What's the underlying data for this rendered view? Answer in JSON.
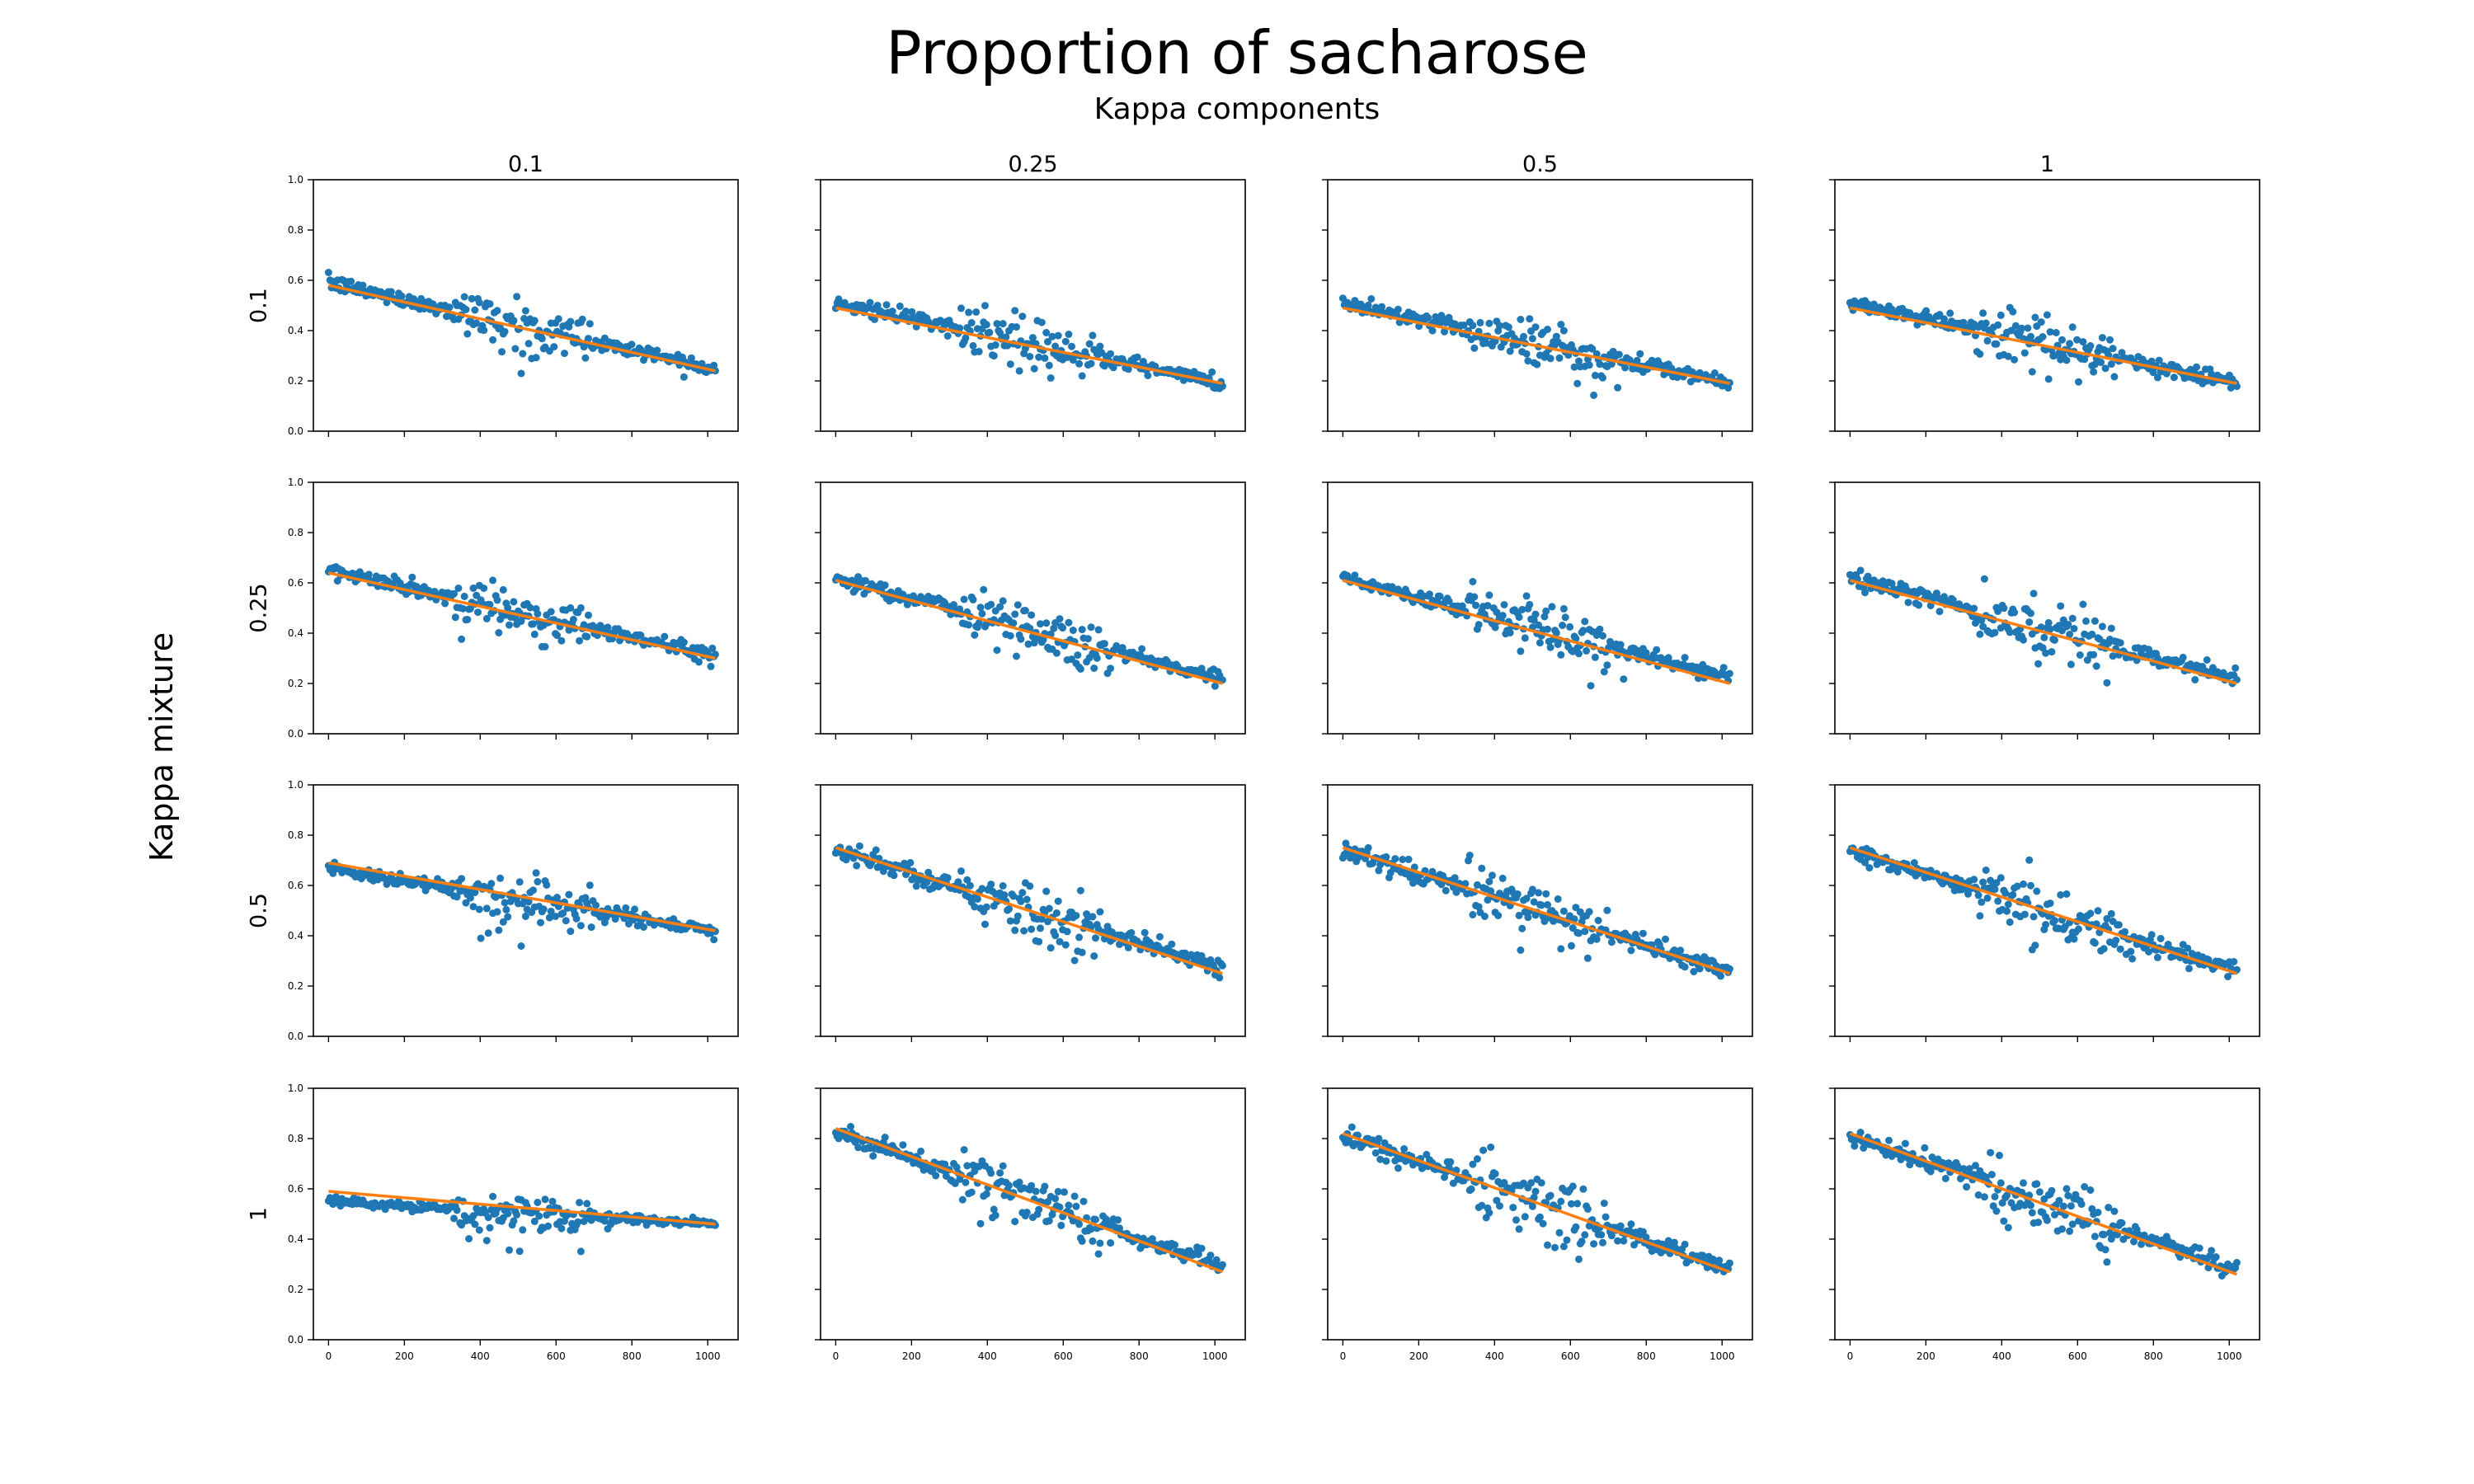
{
  "figure": {
    "title": "Proportion of sacharose",
    "subtitle": "Kappa components",
    "row_axis_label": "Kappa mixture"
  },
  "colors": {
    "points": "#1f77b4",
    "fit": "#ff7f0e",
    "frame": "#000000"
  },
  "chart_data": {
    "type": "scatter",
    "layout": "4x4 grid of subplots with scatter points and fitted trend line",
    "column_labels": [
      "0.1",
      "0.25",
      "0.5",
      "1"
    ],
    "row_labels": [
      "0.1",
      "0.25",
      "0.5",
      "1"
    ],
    "xlim": [
      -40,
      1080
    ],
    "ylim": [
      0,
      1
    ],
    "x_ticks": [
      0,
      200,
      400,
      600,
      800,
      1000
    ],
    "y_ticks": [
      0.0,
      0.2,
      0.4,
      0.6,
      0.8,
      1.0
    ],
    "x_ticks_shown_on": "bottom row only",
    "y_ticks_shown_on": "left column only",
    "grid": false,
    "legend": "none",
    "series": [
      "points",
      "fit"
    ],
    "panels": [
      {
        "row": "0.1",
        "col": "0.1",
        "points_y_range": [
          0.59,
          0.25
        ],
        "fit_line": {
          "x": [
            0,
            1020
          ],
          "y": [
            0.58,
            0.24
          ]
        }
      },
      {
        "row": "0.1",
        "col": "0.25",
        "points_y_range": [
          0.51,
          0.19
        ],
        "fit_line": {
          "x": [
            0,
            1020
          ],
          "y": [
            0.49,
            0.19
          ]
        }
      },
      {
        "row": "0.1",
        "col": "0.5",
        "points_y_range": [
          0.51,
          0.19
        ],
        "fit_line": {
          "x": [
            0,
            1020
          ],
          "y": [
            0.49,
            0.19
          ]
        }
      },
      {
        "row": "0.1",
        "col": "1",
        "points_y_range": [
          0.51,
          0.19
        ],
        "fit_line": {
          "x": [
            0,
            1020
          ],
          "y": [
            0.49,
            0.19
          ]
        }
      },
      {
        "row": "0.25",
        "col": "0.1",
        "points_y_range": [
          0.65,
          0.31
        ],
        "fit_line": {
          "x": [
            0,
            1020
          ],
          "y": [
            0.64,
            0.3
          ]
        }
      },
      {
        "row": "0.25",
        "col": "0.25",
        "points_y_range": [
          0.62,
          0.22
        ],
        "fit_line": {
          "x": [
            0,
            1020
          ],
          "y": [
            0.61,
            0.2
          ]
        }
      },
      {
        "row": "0.25",
        "col": "0.5",
        "points_y_range": [
          0.62,
          0.22
        ],
        "fit_line": {
          "x": [
            0,
            1020
          ],
          "y": [
            0.61,
            0.2
          ]
        }
      },
      {
        "row": "0.25",
        "col": "1",
        "points_y_range": [
          0.62,
          0.22
        ],
        "fit_line": {
          "x": [
            0,
            1020
          ],
          "y": [
            0.61,
            0.2
          ]
        }
      },
      {
        "row": "0.5",
        "col": "0.1",
        "points_y_range": [
          0.67,
          0.42
        ],
        "fit_line": {
          "x": [
            0,
            1020
          ],
          "y": [
            0.69,
            0.42
          ]
        }
      },
      {
        "row": "0.5",
        "col": "0.25",
        "points_y_range": [
          0.74,
          0.27
        ],
        "fit_line": {
          "x": [
            0,
            1020
          ],
          "y": [
            0.75,
            0.25
          ]
        }
      },
      {
        "row": "0.5",
        "col": "0.5",
        "points_y_range": [
          0.74,
          0.26
        ],
        "fit_line": {
          "x": [
            0,
            1020
          ],
          "y": [
            0.75,
            0.25
          ]
        }
      },
      {
        "row": "0.5",
        "col": "1",
        "points_y_range": [
          0.74,
          0.26
        ],
        "fit_line": {
          "x": [
            0,
            1020
          ],
          "y": [
            0.75,
            0.25
          ]
        }
      },
      {
        "row": "1",
        "col": "0.1",
        "points_y_range": [
          0.55,
          0.46
        ],
        "fit_line": {
          "x": [
            0,
            1020
          ],
          "y": [
            0.59,
            0.46
          ]
        }
      },
      {
        "row": "1",
        "col": "0.25",
        "points_y_range": [
          0.83,
          0.29
        ],
        "fit_line": {
          "x": [
            0,
            1020
          ],
          "y": [
            0.84,
            0.27
          ]
        }
      },
      {
        "row": "1",
        "col": "0.5",
        "points_y_range": [
          0.81,
          0.28
        ],
        "fit_line": {
          "x": [
            0,
            1020
          ],
          "y": [
            0.82,
            0.27
          ]
        }
      },
      {
        "row": "1",
        "col": "1",
        "points_y_range": [
          0.81,
          0.28
        ],
        "fit_line": {
          "x": [
            0,
            1020
          ],
          "y": [
            0.82,
            0.26
          ]
        }
      }
    ]
  }
}
